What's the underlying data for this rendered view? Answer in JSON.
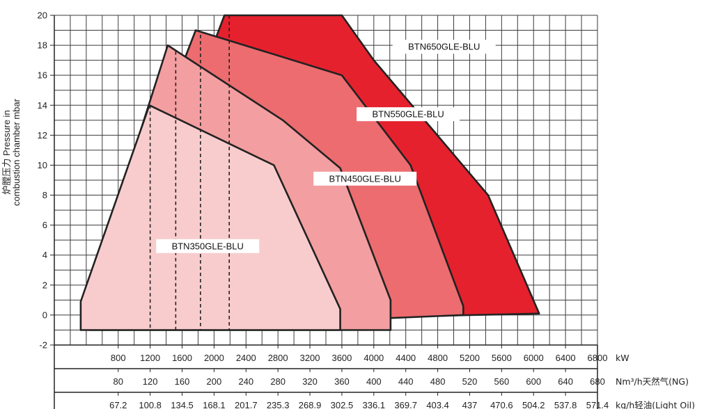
{
  "chart_data": {
    "type": "area",
    "title": "",
    "ylabel_lines": [
      "炉膛压力 Pressure in",
      "combustion chamber mbar"
    ],
    "y_ticks": [
      "20",
      "18",
      "16",
      "14",
      "12",
      "10",
      "8",
      "6",
      "4",
      "2",
      "0",
      "-2"
    ],
    "ylim": [
      -2,
      20
    ],
    "grid": true,
    "x_axes": [
      {
        "unit": "kW",
        "ticks": [
          "800",
          "1200",
          "1600",
          "2000",
          "2400",
          "2800",
          "3200",
          "3600",
          "4000",
          "4400",
          "4800",
          "5200",
          "5600",
          "6000",
          "6400",
          "6800"
        ]
      },
      {
        "unit": "Nm³/h天然气(NG)",
        "ticks": [
          "80",
          "120",
          "160",
          "200",
          "240",
          "280",
          "320",
          "360",
          "400",
          "440",
          "480",
          "520",
          "560",
          "600",
          "640",
          "680"
        ]
      },
      {
        "unit": "kg/h轻油(Light Oil)",
        "ticks": [
          "67.2",
          "100.8",
          "134.5",
          "168.1",
          "201.7",
          "235.3",
          "268.9",
          "302.5",
          "336.1",
          "369.7",
          "403.4",
          "437",
          "470.6",
          "504.2",
          "537.8",
          "571.4"
        ]
      }
    ],
    "xlim_kw": [
      0,
      6800
    ],
    "series": [
      {
        "name": "BTN650GLE-BLU",
        "color": "#e5212e",
        "label_at": [
          4880,
          17.9
        ],
        "points": [
          [
            960,
            -0.5
          ],
          [
            960,
            3.5
          ],
          [
            2130,
            20
          ],
          [
            3600,
            20
          ],
          [
            4000,
            17
          ],
          [
            5430,
            8
          ],
          [
            6070,
            0.1
          ],
          [
            960,
            -0.5
          ]
        ]
      },
      {
        "name": "BTN550GLE-BLU",
        "color": "#ec6c6f",
        "label_at": [
          4430,
          13.4
        ],
        "points": [
          [
            580,
            -1
          ],
          [
            580,
            2.6
          ],
          [
            1770,
            19
          ],
          [
            3600,
            16
          ],
          [
            4460,
            10
          ],
          [
            5120,
            0.6
          ],
          [
            5120,
            0
          ],
          [
            580,
            -1
          ]
        ]
      },
      {
        "name": "BTN450GLE-BLU",
        "color": "#f39ea0",
        "label_at": [
          3890,
          9.1
        ],
        "points": [
          [
            440,
            -1
          ],
          [
            440,
            1.6
          ],
          [
            1420,
            18
          ],
          [
            2860,
            13
          ],
          [
            3580,
            9.8
          ],
          [
            4210,
            1
          ],
          [
            4210,
            -1
          ],
          [
            440,
            -1
          ]
        ]
      },
      {
        "name": "BTN350GLE-BLU",
        "color": "#f8cccd",
        "label_at": [
          1920,
          4.6
        ],
        "points": [
          [
            330,
            -1
          ],
          [
            330,
            0.9
          ],
          [
            1190,
            14
          ],
          [
            2750,
            10
          ],
          [
            3580,
            0.4
          ],
          [
            3580,
            -1
          ],
          [
            330,
            -1
          ]
        ]
      }
    ],
    "reference_lines_kw": [
      1200,
      1520,
      1830,
      2190
    ]
  }
}
